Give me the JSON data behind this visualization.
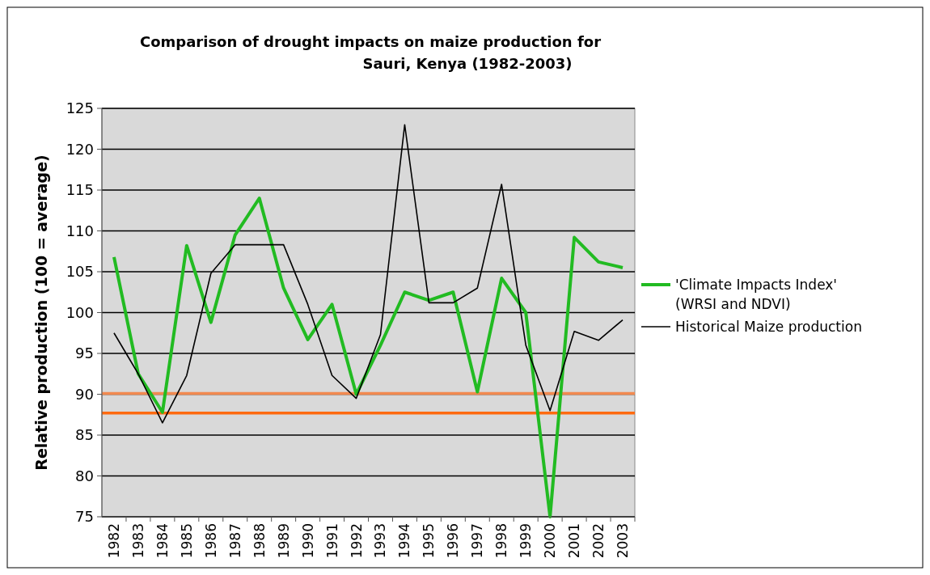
{
  "chart_data": {
    "type": "line",
    "title": "Comparison of drought impacts on maize production for Sauri, Kenya (1982-2003)",
    "ylabel": "Relative production (100 = average)",
    "categories": [
      "1982",
      "1983",
      "1984",
      "1985",
      "1986",
      "1987",
      "1988",
      "1989",
      "1990",
      "1991",
      "1992",
      "1993",
      "1994",
      "1995",
      "1996",
      "1997",
      "1998",
      "1999",
      "2000",
      "2001",
      "2002",
      "2003"
    ],
    "series": [
      {
        "name": "'Climate Impacts Index' (WRSI and NDVI)",
        "color": "#22bb22",
        "values": [
          106.8,
          92.5,
          87.8,
          108.2,
          98.8,
          109.5,
          114,
          103,
          96.7,
          101,
          90,
          96,
          102.5,
          101.5,
          102.5,
          90.3,
          104.2,
          100,
          75,
          109.2,
          106.2,
          105.5
        ]
      },
      {
        "name": "Historical Maize production",
        "color": "#000000",
        "values": [
          97.5,
          92.5,
          86.5,
          92.3,
          104.8,
          108.3,
          108.3,
          108.3,
          101,
          92.3,
          89.5,
          97.3,
          123,
          101.2,
          101.2,
          103,
          115.7,
          96,
          88,
          97.7,
          96.6,
          99.1
        ]
      }
    ],
    "ylim": [
      75,
      125
    ],
    "yticks": [
      75,
      80,
      85,
      90,
      95,
      100,
      105,
      110,
      115,
      120,
      125
    ],
    "grid": "y",
    "legend": "right",
    "marker": "none",
    "ref_lines": [
      {
        "axis": "y",
        "value": 90.1,
        "color": "#f28a50"
      },
      {
        "axis": "y",
        "value": 87.7,
        "color": "#ff6a10"
      }
    ]
  }
}
